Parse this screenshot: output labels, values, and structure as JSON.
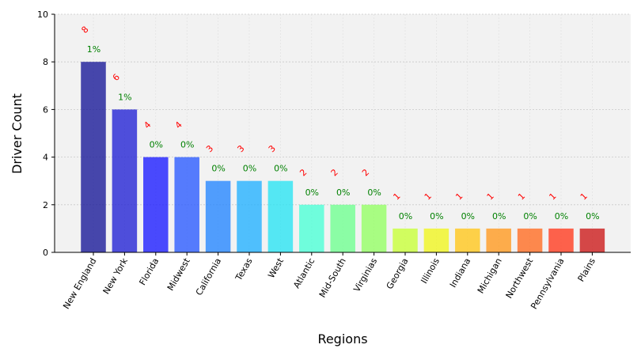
{
  "chart_data": {
    "type": "bar",
    "xlabel": "Regions",
    "ylabel": "Driver Count",
    "ylim": [
      0,
      10
    ],
    "yticks": [
      0,
      2,
      4,
      6,
      8,
      10
    ],
    "grid": true,
    "categories": [
      "New England",
      "New York",
      "Florida",
      "Midwest",
      "California",
      "Texas",
      "West",
      "Atlantic",
      "Mid-South",
      "Virginias",
      "Georgia",
      "Illinois",
      "Indiana",
      "Michigan",
      "Northwest",
      "Pennsylvania",
      "Plains"
    ],
    "values": [
      8,
      6,
      4,
      4,
      3,
      3,
      3,
      2,
      2,
      2,
      1,
      1,
      1,
      1,
      1,
      1,
      1
    ],
    "value_labels": [
      "8",
      "6",
      "4",
      "4",
      "3",
      "3",
      "3",
      "2",
      "2",
      "2",
      "1",
      "1",
      "1",
      "1",
      "1",
      "1",
      "1"
    ],
    "percent_labels": [
      "1%",
      "1%",
      "0%",
      "0%",
      "0%",
      "0%",
      "0%",
      "0%",
      "0%",
      "0%",
      "0%",
      "0%",
      "0%",
      "0%",
      "0%",
      "0%",
      "0%"
    ],
    "bar_colors": [
      "#1a1a99",
      "#2424d4",
      "#1e1eff",
      "#2d5cff",
      "#2787ff",
      "#25b1ff",
      "#2ce3f2",
      "#4dffd6",
      "#71ff91",
      "#95ff65",
      "#c8ff3a",
      "#f0f520",
      "#ffc71d",
      "#ff9a20",
      "#ff6d23",
      "#ff3c21",
      "#cc1b1b"
    ],
    "value_label_color": "#ff0000",
    "percent_label_color": "#008000",
    "plot_background": "#f2f2f2"
  }
}
